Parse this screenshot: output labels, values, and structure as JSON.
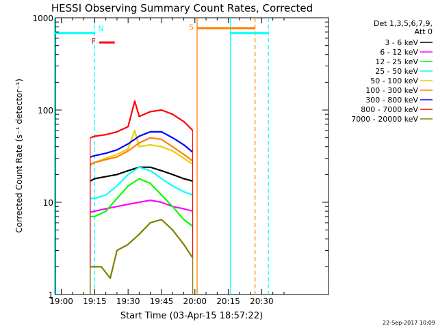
{
  "chart_data": {
    "type": "line",
    "title": "HESSI Observing Summary Count Rates, Corrected",
    "xlabel": "Start Time (03-Apr-15 18:57:22)",
    "ylabel": "Corrected Count Rate (s⁻¹ detector⁻¹)",
    "y_scale": "log",
    "ylim": [
      1,
      1000
    ],
    "xlim": [
      "18:57:22",
      "21:00:00"
    ],
    "x_tick_labels": [
      "19:00",
      "19:15",
      "19:30",
      "19:45",
      "20:00",
      "20:15",
      "20:30"
    ],
    "y_tick_labels": [
      "1",
      "10",
      "100",
      "1000"
    ],
    "legend_title": [
      "Det 1,3,5,6,7,9,",
      "Att 0"
    ],
    "legend_position": "right",
    "timestamp": "22-Sep-2017 10:09",
    "grid": false,
    "series": [
      {
        "name": "3 - 6 keV",
        "color": "#000000",
        "x": [
          "19:13",
          "19:15",
          "19:20",
          "19:25",
          "19:30",
          "19:35",
          "19:40",
          "19:45",
          "19:50",
          "19:55",
          "19:59"
        ],
        "values": [
          17,
          18,
          19,
          20,
          22,
          24,
          24,
          22,
          20,
          18,
          17
        ]
      },
      {
        "name": "6 - 12 keV",
        "color": "#ff00ff",
        "x": [
          "19:13",
          "19:15",
          "19:20",
          "19:25",
          "19:30",
          "19:35",
          "19:40",
          "19:45",
          "19:50",
          "19:55",
          "19:59"
        ],
        "values": [
          7.8,
          8,
          8.5,
          9,
          9.5,
          10,
          10.5,
          10,
          9,
          8.5,
          8
        ]
      },
      {
        "name": "12 - 25 keV",
        "color": "#00ff00",
        "x": [
          "19:13",
          "19:15",
          "19:20",
          "19:25",
          "19:30",
          "19:35",
          "19:40",
          "19:45",
          "19:50",
          "19:55",
          "19:59"
        ],
        "values": [
          7,
          7,
          8,
          11,
          15,
          18,
          16,
          12,
          9,
          6.5,
          5.5
        ]
      },
      {
        "name": "25 - 50 keV",
        "color": "#00ffff",
        "x": [
          "19:13",
          "19:15",
          "19:20",
          "19:25",
          "19:30",
          "19:35",
          "19:40",
          "19:45",
          "19:50",
          "19:55",
          "19:59"
        ],
        "values": [
          11,
          11,
          12,
          15,
          20,
          24,
          22,
          18,
          15,
          13,
          12
        ]
      },
      {
        "name": "50 - 100 keV",
        "color": "#e6d000",
        "x": [
          "19:13",
          "19:15",
          "19:20",
          "19:25",
          "19:30",
          "19:33",
          "19:35",
          "19:40",
          "19:45",
          "19:50",
          "19:55",
          "19:59"
        ],
        "values": [
          25,
          27,
          30,
          33,
          38,
          60,
          40,
          42,
          40,
          36,
          30,
          26
        ]
      },
      {
        "name": "100 - 300 keV",
        "color": "#ff8000",
        "x": [
          "19:13",
          "19:15",
          "19:20",
          "19:25",
          "19:30",
          "19:35",
          "19:40",
          "19:45",
          "19:50",
          "19:55",
          "19:59"
        ],
        "values": [
          26,
          27,
          29,
          31,
          36,
          44,
          50,
          48,
          40,
          33,
          28
        ]
      },
      {
        "name": "300 - 800 keV",
        "color": "#0000ff",
        "x": [
          "19:13",
          "19:15",
          "19:20",
          "19:25",
          "19:30",
          "19:35",
          "19:40",
          "19:45",
          "19:50",
          "19:55",
          "19:59"
        ],
        "values": [
          31,
          32,
          34,
          37,
          43,
          52,
          58,
          58,
          50,
          42,
          35
        ]
      },
      {
        "name": "800 - 7000 keV",
        "color": "#ff0000",
        "x": [
          "19:13",
          "19:15",
          "19:20",
          "19:25",
          "19:30",
          "19:33",
          "19:35",
          "19:40",
          "19:45",
          "19:50",
          "19:55",
          "19:59"
        ],
        "values": [
          50,
          52,
          54,
          58,
          66,
          125,
          85,
          96,
          100,
          90,
          75,
          60
        ]
      },
      {
        "name": "7000 - 20000 keV",
        "color": "#808000",
        "x": [
          "19:13",
          "19:18",
          "19:22",
          "19:25",
          "19:30",
          "19:35",
          "19:40",
          "19:45",
          "19:50",
          "19:55",
          "19:59"
        ],
        "values": [
          2,
          2,
          1.5,
          3,
          3.5,
          4.5,
          6,
          6.5,
          5,
          3.5,
          2.5
        ]
      }
    ],
    "annotations": [
      {
        "label": "N",
        "color": "#00ffff",
        "interval": [
          "18:57",
          "19:15"
        ]
      },
      {
        "label": "F",
        "color": "#ff0000",
        "interval": [
          "19:17",
          "19:24"
        ]
      },
      {
        "label": "S",
        "color": "#ff8000",
        "interval": [
          "20:01",
          "20:27"
        ]
      }
    ],
    "vertical_markers": [
      {
        "x": "18:57",
        "color": "#00ffff",
        "style": "solid"
      },
      {
        "x": "19:15",
        "color": "#00ffff",
        "style": "dashed"
      },
      {
        "x": "20:01",
        "color": "#ff8000",
        "style": "solid"
      },
      {
        "x": "20:16",
        "color": "#00ffff",
        "style": "solid"
      },
      {
        "x": "20:27",
        "color": "#ff8000",
        "style": "dashed"
      },
      {
        "x": "20:33",
        "color": "#00ffff",
        "style": "dashed"
      }
    ]
  }
}
